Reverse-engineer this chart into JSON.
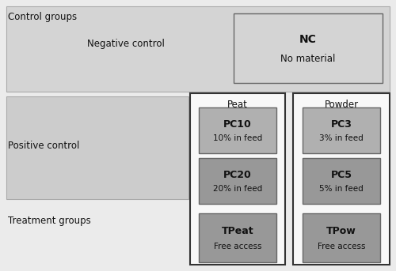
{
  "fig_width": 5.0,
  "fig_height": 3.43,
  "dpi": 100,
  "bg_outer_color": "#ebebeb",
  "control_groups_label": "Control groups",
  "treatment_groups_label": "Treatment groups",
  "negative_control_label": "Negative control",
  "positive_control_label": "Positive control",
  "peat_label": "Peat",
  "powder_label": "Powder",
  "nc_bold": "NC",
  "nc_sub": "No material",
  "pc10_bold": "PC10",
  "pc10_sub": "10% in feed",
  "pc20_bold": "PC20",
  "pc20_sub": "20% in feed",
  "pc3_bold": "PC3",
  "pc3_sub": "3% in feed",
  "pc5_bold": "PC5",
  "pc5_sub": "5% in feed",
  "tpeat_bold": "TPeat",
  "tpeat_sub": "Free access",
  "tpow_bold": "TPow",
  "tpow_sub": "Free access",
  "nc_band_color": "#d4d4d4",
  "pc_band_color": "#cccccc",
  "nc_box_color": "#d4d4d4",
  "pc10_color": "#b0b0b0",
  "pc20_color": "#989898",
  "pc3_color": "#b0b0b0",
  "pc5_color": "#989898",
  "tpeat_color": "#989898",
  "tpow_color": "#989898",
  "outer_box_color": "#f8f8f8",
  "band_edge": "#aaaaaa",
  "box_edge": "#666666",
  "outer_edge": "#333333",
  "text_color": "#111111"
}
